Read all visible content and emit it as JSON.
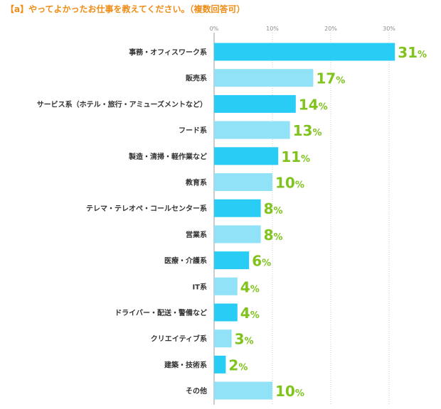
{
  "chart_data": {
    "type": "bar",
    "orientation": "horizontal",
    "title": "【a】やってよかったお仕事を教えてください。（複数回答可）",
    "categories": [
      "事務・オフィスワーク系",
      "販売系",
      "サービス系（ホテル・旅行・アミューズメントなど）",
      "フード系",
      "製造・清掃・軽作業など",
      "教育系",
      "テレマ・テレオペ・コールセンター系",
      "営業系",
      "医療・介護系",
      "IT系",
      "ドライバー・配送・警備など",
      "クリエイティブ系",
      "建築・技術系",
      "その他"
    ],
    "values": [
      31,
      17,
      14,
      13,
      11,
      10,
      8,
      8,
      6,
      4,
      4,
      3,
      2,
      10
    ],
    "value_suffix": "%",
    "xticks": [
      "0%",
      "10%",
      "20%",
      "30%"
    ],
    "xlim": [
      0,
      36
    ],
    "grid": true,
    "colors": {
      "odd_bar": "#29ccf5",
      "even_bar": "#91e1f7",
      "value_text": "#7fc31c",
      "title": "#f08c14"
    }
  }
}
